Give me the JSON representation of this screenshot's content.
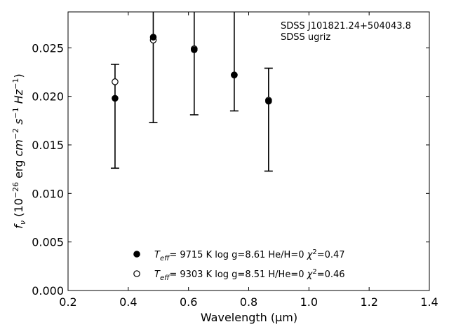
{
  "chart_data": {
    "type": "scatter",
    "xlabel": "Wavelength (μm)",
    "ylabel_parts": [
      "f",
      "ν",
      " (10",
      "−26",
      " erg ",
      "cm",
      "−2",
      " ",
      "s",
      "−1",
      " ",
      "Hz",
      "−1",
      ")"
    ],
    "xlim": [
      0.2,
      1.4
    ],
    "ylim": [
      0.0,
      0.0287
    ],
    "xticks": [
      "0.2",
      "0.4",
      "0.6",
      "0.8",
      "1.0",
      "1.2",
      "1.4"
    ],
    "yticks": [
      "0.000",
      "0.005",
      "0.010",
      "0.015",
      "0.020",
      "0.025"
    ],
    "annotation": [
      "SDSS J101821.24+504043.8",
      "SDSS ugriz"
    ],
    "observed": [
      {
        "x": 0.356,
        "y": 0.0198,
        "ylow": 0.0126,
        "yhigh": 0.0233
      },
      {
        "x": 0.483,
        "y": 0.0261,
        "ylow": 0.0173,
        "yhigh": 0.03
      },
      {
        "x": 0.619,
        "y": 0.0249,
        "ylow": 0.0181,
        "yhigh": 0.03
      },
      {
        "x": 0.752,
        "y": 0.0222,
        "ylow": 0.0185,
        "yhigh": 0.03
      },
      {
        "x": 0.866,
        "y": 0.0194,
        "ylow": 0.0123,
        "yhigh": 0.0229
      }
    ],
    "series": [
      {
        "marker": "filled",
        "legend": {
          "T": "T",
          "sub": "eff",
          "text": "=  9715 K  log g=8.61  He/H=0  ",
          "chi": "χ",
          "sup": "2",
          "val": "=0.47"
        },
        "points": [
          {
            "x": 0.356,
            "y": 0.0198
          },
          {
            "x": 0.483,
            "y": 0.0261
          },
          {
            "x": 0.619,
            "y": 0.0248
          },
          {
            "x": 0.752,
            "y": 0.0222
          },
          {
            "x": 0.866,
            "y": 0.0195
          }
        ]
      },
      {
        "marker": "open",
        "legend": {
          "T": "T",
          "sub": "eff",
          "text": "=  9303 K  log g=8.51  H/He=0  ",
          "chi": "χ",
          "sup": "2",
          "val": "=0.46"
        },
        "points": [
          {
            "x": 0.356,
            "y": 0.0215
          },
          {
            "x": 0.483,
            "y": 0.0258
          },
          {
            "x": 0.619,
            "y": 0.0249
          },
          {
            "x": 0.752,
            "y": 0.0222
          },
          {
            "x": 0.866,
            "y": 0.0196
          }
        ]
      }
    ]
  }
}
